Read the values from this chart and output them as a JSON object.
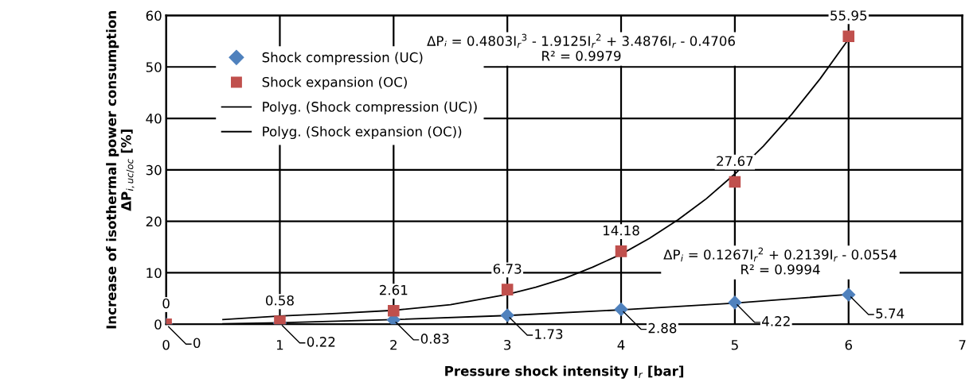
{
  "chart_data": {
    "type": "scatter",
    "xlabel": "Pressure shock intensity I$_{r}$ [bar]",
    "ylabel": "Increase of isothermal power consumption\nΔP$_{i,uc/oc}$ [%]",
    "xlim": [
      0,
      7
    ],
    "xticks": [
      0,
      1,
      2,
      3,
      4,
      5,
      6,
      7
    ],
    "ylim": [
      0,
      60
    ],
    "yticks": [
      0,
      10,
      20,
      30,
      40,
      50,
      60
    ],
    "grid": true,
    "legend": "top left",
    "series": [
      {
        "name": "Shock compression (UC)",
        "marker": "diamond",
        "color": "#4f81bd",
        "x": [
          0,
          1,
          2,
          3,
          4,
          5,
          6
        ],
        "values": [
          0,
          0.22,
          0.83,
          1.73,
          2.88,
          4.22,
          5.74
        ],
        "value_labels": [
          "0",
          "0.22",
          "0.83",
          "1.73",
          "2.88",
          "4.22",
          "5.74"
        ]
      },
      {
        "name": "Shock expansion (OC)",
        "marker": "square",
        "color": "#c0504d",
        "x": [
          0,
          1,
          2,
          3,
          4,
          5,
          6
        ],
        "values": [
          0,
          0.58,
          2.61,
          6.73,
          14.18,
          27.67,
          55.95
        ],
        "value_labels": [
          "0",
          "0.58",
          "2.61",
          "6.73",
          "14.18",
          "27.67",
          "55.95"
        ]
      },
      {
        "name": "Polyg. (Shock compression (UC))",
        "type": "line",
        "marker": "none",
        "line_style": "solid",
        "color": "#000000",
        "x": [
          0.5,
          1,
          2,
          3,
          4,
          5,
          6
        ],
        "values": [
          0.1,
          0.3,
          0.9,
          1.7,
          2.8,
          4.1,
          5.8
        ]
      },
      {
        "name": "Polyg. (Shock expansion (OC))",
        "type": "line",
        "marker": "none",
        "line_style": "solid",
        "color": "#000000",
        "x": [
          0.5,
          1,
          1.5,
          2,
          2.5,
          3,
          3.25,
          3.5,
          3.75,
          4,
          4.25,
          4.5,
          4.75,
          5,
          5.25,
          5.5,
          5.75,
          6
        ],
        "values": [
          0.9,
          1.6,
          2.1,
          2.7,
          3.8,
          5.8,
          7.2,
          8.9,
          11.1,
          13.6,
          16.7,
          20.3,
          24.4,
          29.2,
          34.6,
          40.8,
          47.7,
          55.4
        ]
      }
    ],
    "annotations": [
      "ΔP$_{i}$ = 0.4803I$_{r}$$^{3}$ - 1.9125I$_{r}$$^{2}$ + 3.4876I$_{r}$ - 0.4706\nR² = 0.9979",
      "ΔP$_{i}$ = 0.1267I$_{r}$$^{2}$ + 0.2139I$_{r}$ - 0.0554\nR² = 0.9994"
    ]
  }
}
